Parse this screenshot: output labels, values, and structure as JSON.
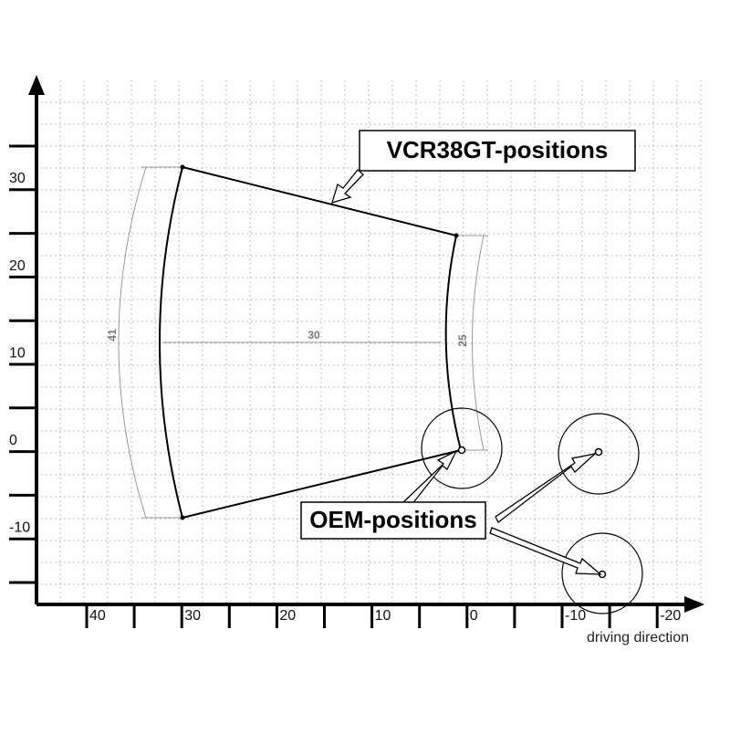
{
  "callouts": {
    "vcr": "VCR38GT-positions",
    "oem": "OEM-positions"
  },
  "x_axis": {
    "labels": [
      "40",
      "30",
      "20",
      "10",
      "0",
      "-10",
      "-20"
    ],
    "caption": "driving direction"
  },
  "y_axis": {
    "labels": [
      "30",
      "20",
      "10",
      "0",
      "-10"
    ]
  },
  "dimensions": {
    "left_arc": "41",
    "width": "30",
    "right_arc": "25"
  }
}
